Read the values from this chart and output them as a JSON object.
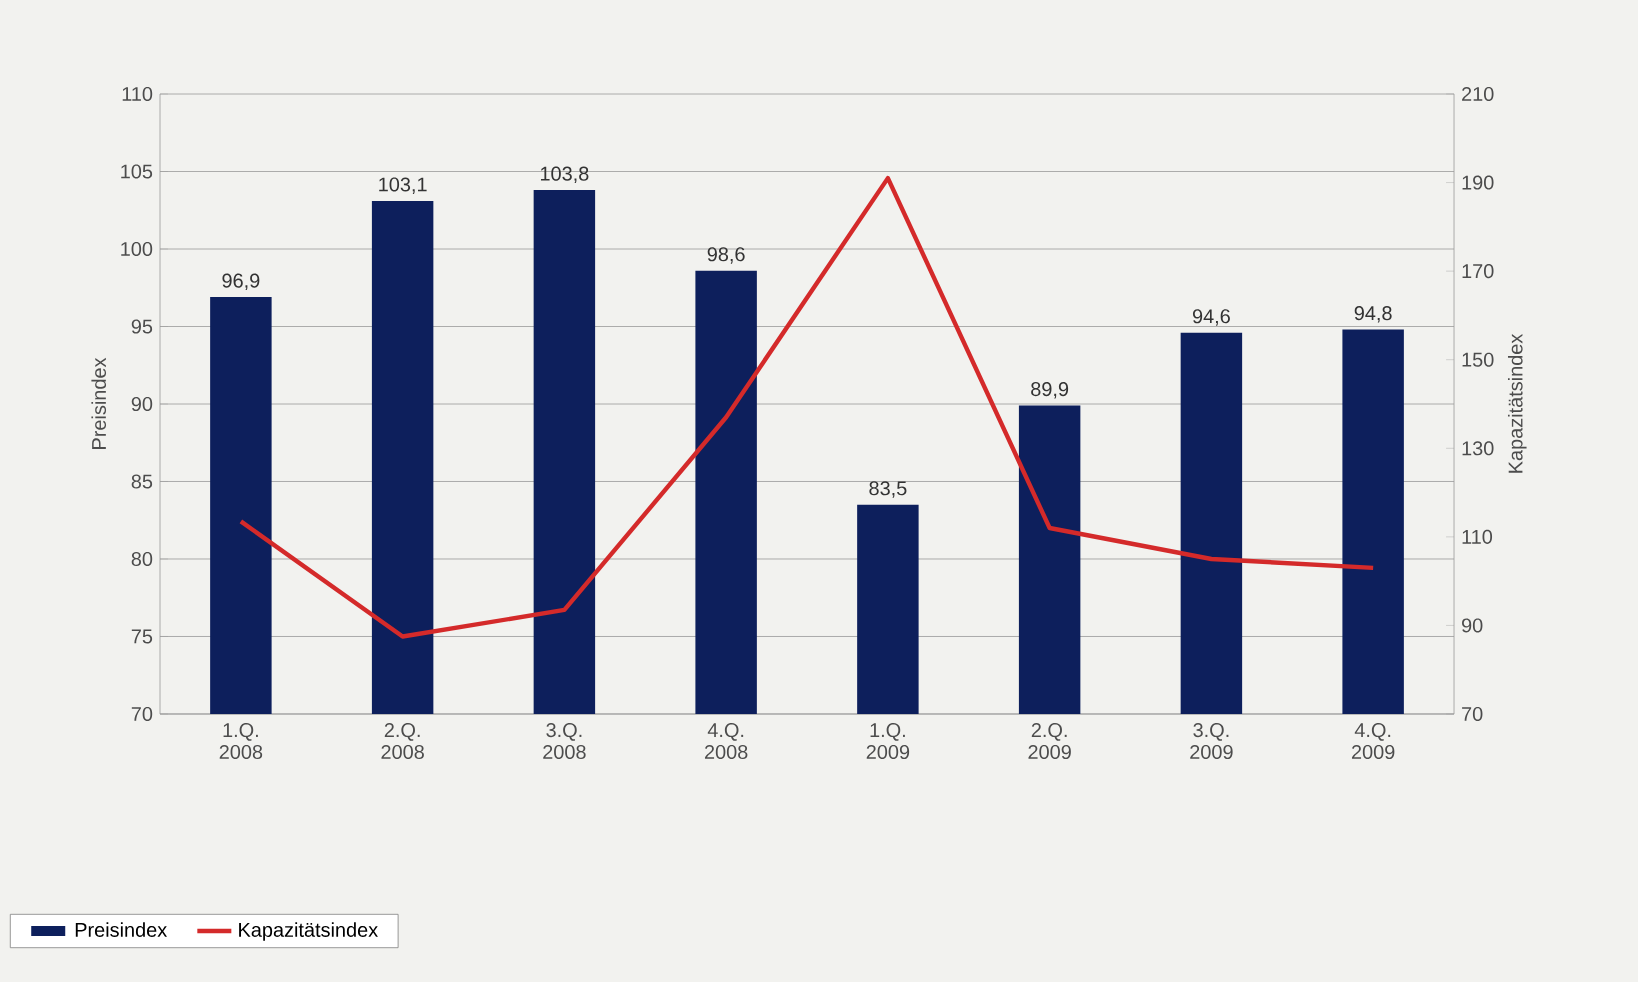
{
  "chart_data": {
    "type": "bar",
    "ylabel": "Preisindex",
    "y2label": "Kapazitätsindex",
    "categories": [
      "1.Q. 2008",
      "2.Q. 2008",
      "3.Q. 2008",
      "4.Q. 2008",
      "1.Q. 2009",
      "2.Q. 2009",
      "3.Q. 2009",
      "4.Q. 2009"
    ],
    "series": [
      {
        "name": "Preisindex",
        "color": "#0d1f5c",
        "values": [
          96.9,
          103.1,
          103.8,
          98.6,
          83.5,
          89.9,
          94.6,
          94.8
        ],
        "value_labels": [
          "96,9",
          "103,1",
          "103,8",
          "98,6",
          "83,5",
          "89,9",
          "94,6",
          "94,8"
        ]
      },
      {
        "name": "Kapazitätsindex",
        "type": "line",
        "axis": "y2",
        "color": "#d42a2a",
        "values": [
          113.5,
          87.5,
          93.5,
          137,
          191,
          112,
          105,
          103
        ]
      }
    ],
    "ylim": [
      70,
      110
    ],
    "yticks": [
      70,
      75,
      80,
      85,
      90,
      95,
      100,
      105,
      110
    ],
    "y2lim": [
      70,
      210
    ],
    "y2ticks": [
      70,
      90,
      110,
      130,
      150,
      170,
      190,
      210
    ],
    "grid": "y",
    "legend": "bottom left"
  }
}
